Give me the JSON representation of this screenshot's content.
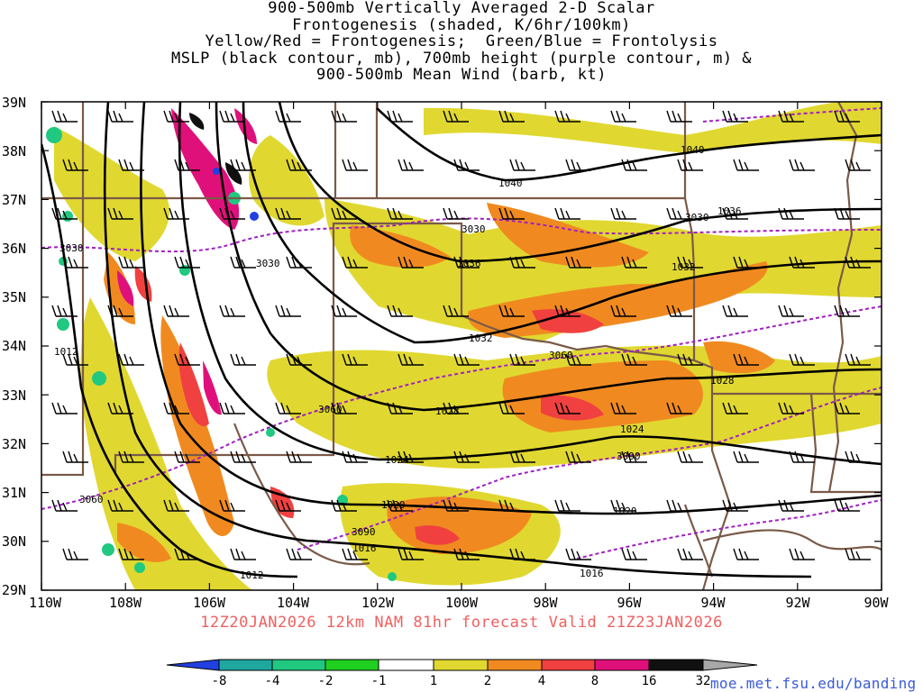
{
  "title_lines": [
    "900-500mb Vertically Averaged 2-D Scalar",
    "Frontogenesis (shaded, K/6hr/100km)",
    "Yellow/Red = Frontogenesis;  Green/Blue = Frontolysis",
    "MSLP (black contour, mb), 700mb height (purple contour, m) &",
    "900-500mb Mean Wind (barb, kt)"
  ],
  "valid_line": "12Z20JAN2026 12km NAM 81hr forecast Valid 21Z23JAN2026",
  "credit": "moe.met.fsu.edu/banding",
  "map": {
    "lon_labels": [
      "110W",
      "108W",
      "106W",
      "104W",
      "102W",
      "100W",
      "98W",
      "96W",
      "94W",
      "92W",
      "90W"
    ],
    "lat_labels": [
      "39N",
      "38N",
      "37N",
      "36N",
      "35N",
      "34N",
      "33N",
      "32N",
      "31N",
      "30N",
      "29N"
    ],
    "mslp_labels": [
      "1040",
      "1040",
      "1036",
      "1036",
      "1032",
      "1032",
      "1028",
      "1028",
      "1024",
      "1024",
      "1020",
      "1020",
      "1016",
      "1016",
      "1012",
      "1012"
    ],
    "height_labels": [
      "3030",
      "3030",
      "3030",
      "3030",
      "3060",
      "3060",
      "3060",
      "3090",
      "3090"
    ],
    "colors": {
      "mslp": "#000000",
      "height": "#a020c0",
      "borders": "#7a5a48",
      "valid_text": "#f06060",
      "credit_text": "#3a5ad8"
    }
  },
  "colorbar": {
    "labels": [
      "-8",
      "-4",
      "-2",
      "-1",
      "1",
      "2",
      "4",
      "8",
      "16",
      "32"
    ],
    "colors": [
      "#2040e0",
      "#20a8a0",
      "#20c880",
      "#20d020",
      "#ffffff",
      "#e0d830",
      "#f08a20",
      "#f04040",
      "#e0107a",
      "#101010",
      "#a8a8a8"
    ]
  }
}
